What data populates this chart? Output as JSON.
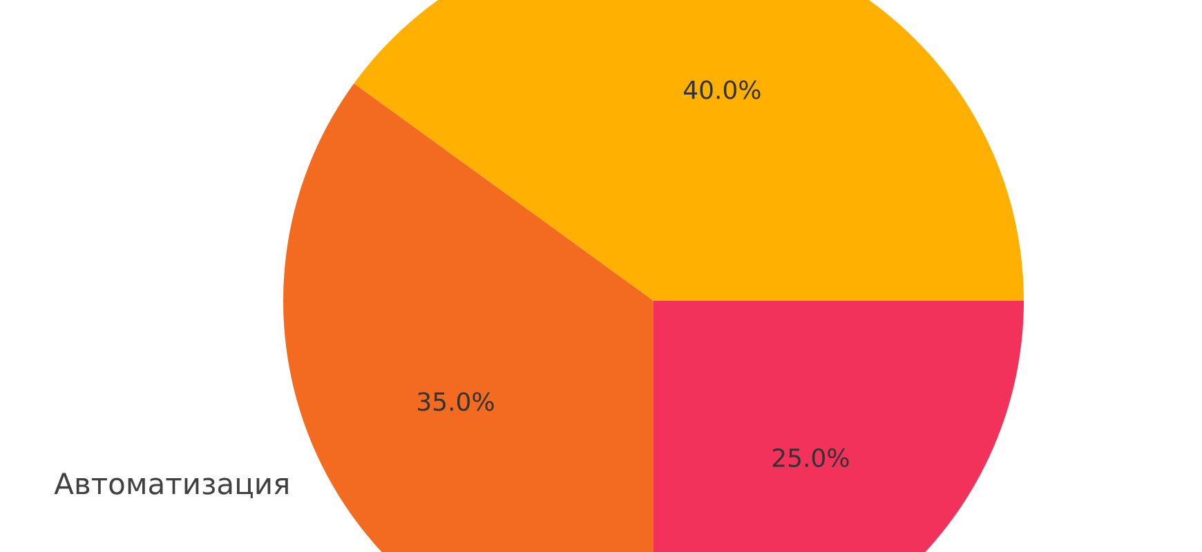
{
  "chart_data": {
    "type": "pie",
    "categories": [
      null,
      "Автоматизация",
      null
    ],
    "values": [
      40,
      35,
      25
    ],
    "colors": [
      "#ffb000",
      "#f26b21",
      "#f2325a"
    ],
    "value_labels": [
      "40.0%",
      "35.0%",
      "25.0%"
    ]
  }
}
